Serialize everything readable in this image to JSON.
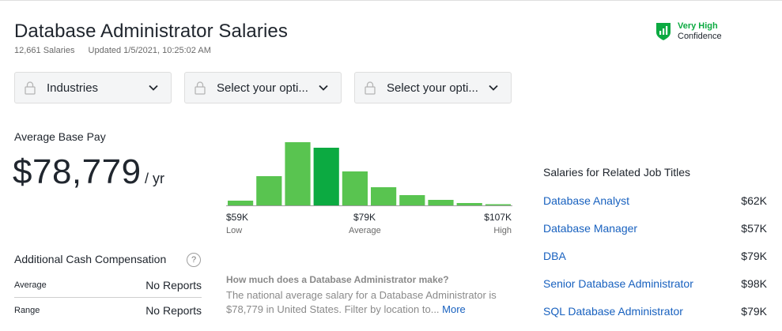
{
  "header": {
    "title": "Database Administrator Salaries",
    "salaries_count": "12,661 Salaries",
    "updated": "Updated 1/5/2021, 10:25:02 AM"
  },
  "confidence": {
    "level": "Very High",
    "label": "Confidence",
    "icon": "shield-bar-chart-icon",
    "color": "#0caa41"
  },
  "filters": [
    {
      "label": "Industries",
      "icon": "lock-icon"
    },
    {
      "label": "Select your opti...",
      "icon": "lock-icon"
    },
    {
      "label": "Select your opti...",
      "icon": "lock-icon"
    }
  ],
  "base_pay": {
    "label": "Average Base Pay",
    "value": "$78,779",
    "unit": "/ yr"
  },
  "chart_data": {
    "type": "bar",
    "values": [
      6,
      37,
      80,
      73,
      43,
      23,
      13,
      7,
      3,
      1
    ],
    "highlight_index": 3,
    "ylim": [
      0,
      100
    ],
    "ticks": [
      {
        "value": "$59K",
        "label": "Low"
      },
      {
        "value": "$79K",
        "label": "Average"
      },
      {
        "value": "$107K",
        "label": "High"
      }
    ],
    "colors": {
      "bar": "#59c450",
      "highlight": "#0caa41"
    }
  },
  "cash": {
    "title": "Additional Cash Compensation",
    "help": "?",
    "rows": [
      {
        "label": "Average",
        "value": "No Reports"
      },
      {
        "label": "Range",
        "value": "No Reports"
      }
    ]
  },
  "faq": {
    "question": "How much does a Database Administrator make?",
    "answer": "The national average salary for a Database Administrator is $78,779 in United States. Filter by location to...",
    "more": "More"
  },
  "related": {
    "title": "Salaries for Related Job Titles",
    "items": [
      {
        "title": "Database Analyst",
        "salary": "$62K"
      },
      {
        "title": "Database Manager",
        "salary": "$57K"
      },
      {
        "title": "DBA",
        "salary": "$79K"
      },
      {
        "title": "Senior Database Administrator",
        "salary": "$98K"
      },
      {
        "title": "SQL Database Administrator",
        "salary": "$79K"
      }
    ]
  }
}
